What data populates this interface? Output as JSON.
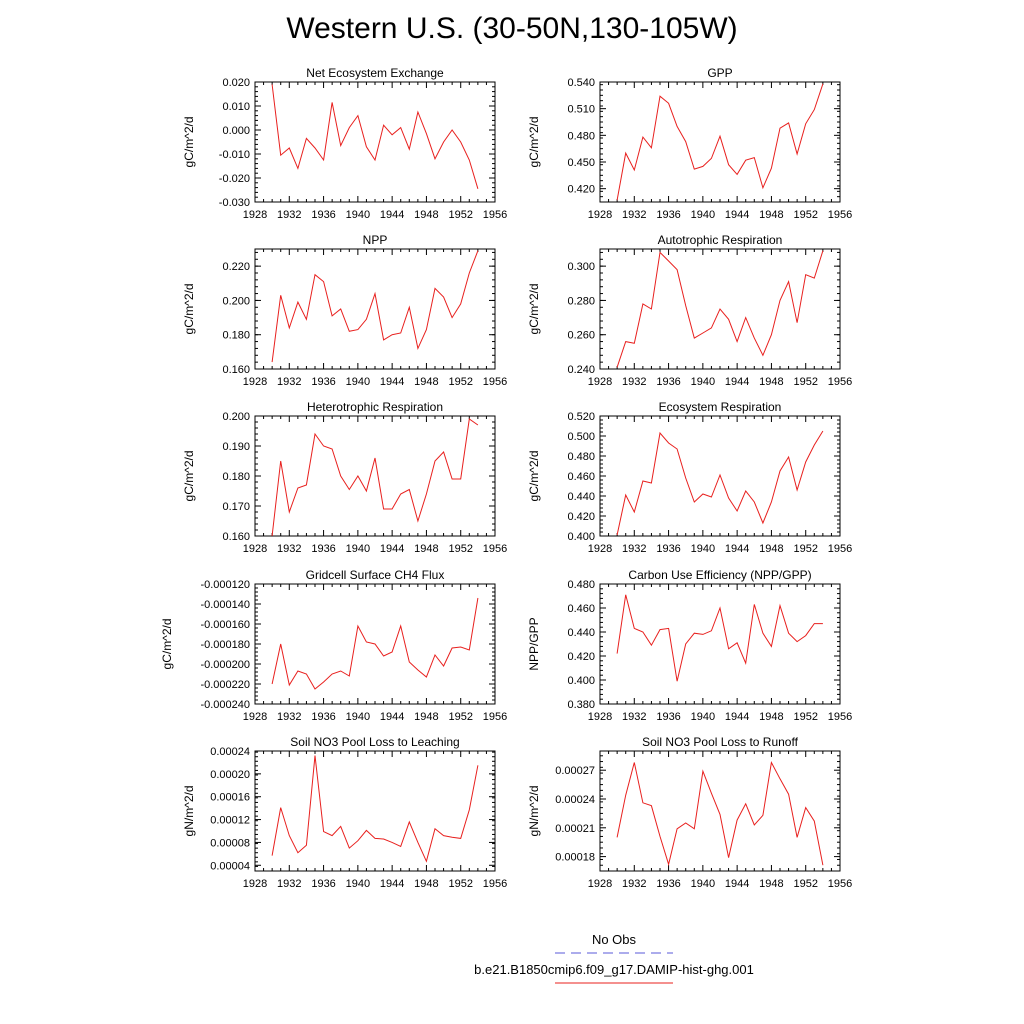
{
  "title": "Western U.S. (30-50N,130-105W)",
  "colors": {
    "model": "#e8201e",
    "obs": "#5a5ad8",
    "axis": "#000000"
  },
  "legend": {
    "obs_label": "No Obs",
    "model_label": "b.e21.B1850cmip6.f09_g17.DAMIP-hist-ghg.001"
  },
  "chart_data": [
    {
      "type": "line",
      "title": "Net Ecosystem Exchange",
      "ylabel": "gC/m^2/d",
      "xlim": [
        1928,
        1956
      ],
      "ylim": [
        -0.03,
        0.02
      ],
      "xticks": [
        "1928",
        "1932",
        "1936",
        "1940",
        "1944",
        "1948",
        "1952",
        "1956"
      ],
      "yticks": [
        "0.020",
        "0.010",
        "0.000",
        "-0.010",
        "-0.020",
        "-0.030"
      ],
      "ytick_values": [
        0.02,
        0.01,
        0.0,
        -0.01,
        -0.02,
        -0.03
      ],
      "x": [
        1930,
        1931,
        1932,
        1933,
        1934,
        1935,
        1936,
        1937,
        1938,
        1939,
        1940,
        1941,
        1942,
        1943,
        1944,
        1945,
        1946,
        1947,
        1948,
        1949,
        1950,
        1951,
        1952,
        1953,
        1954
      ],
      "series": [
        {
          "name": "b.e21.B1850cmip6.f09_g17.DAMIP-hist-ghg.001",
          "values": [
            0.019,
            -0.0105,
            -0.0075,
            -0.016,
            -0.0035,
            -0.0075,
            -0.0125,
            0.0115,
            -0.0065,
            0.001,
            0.006,
            -0.007,
            -0.0125,
            0.002,
            -0.002,
            0.001,
            -0.008,
            0.0075,
            -0.0015,
            -0.012,
            -0.005,
            0.0,
            -0.005,
            -0.0125,
            -0.0245
          ]
        }
      ]
    },
    {
      "type": "line",
      "title": "GPP",
      "ylabel": "gC/m^2/d",
      "xlim": [
        1928,
        1956
      ],
      "ylim": [
        0.405,
        0.54
      ],
      "xticks": [
        "1928",
        "1932",
        "1936",
        "1940",
        "1944",
        "1948",
        "1952",
        "1956"
      ],
      "yticks": [
        "0.540",
        "0.510",
        "0.480",
        "0.450",
        "0.420"
      ],
      "ytick_values": [
        0.54,
        0.51,
        0.48,
        0.45,
        0.42
      ],
      "x": [
        1930,
        1931,
        1932,
        1933,
        1934,
        1935,
        1936,
        1937,
        1938,
        1939,
        1940,
        1941,
        1942,
        1943,
        1944,
        1945,
        1946,
        1947,
        1948,
        1949,
        1950,
        1951,
        1952,
        1953,
        1954
      ],
      "series": [
        {
          "name": "b.e21.B1850cmip6.f09_g17.DAMIP-hist-ghg.001",
          "values": [
            0.407,
            0.46,
            0.441,
            0.478,
            0.466,
            0.524,
            0.516,
            0.49,
            0.473,
            0.442,
            0.445,
            0.454,
            0.479,
            0.447,
            0.436,
            0.452,
            0.455,
            0.421,
            0.443,
            0.488,
            0.494,
            0.459,
            0.493,
            0.509,
            0.538
          ]
        }
      ]
    },
    {
      "type": "line",
      "title": "NPP",
      "ylabel": "gC/m^2/d",
      "xlim": [
        1928,
        1956
      ],
      "ylim": [
        0.16,
        0.23
      ],
      "xticks": [
        "1928",
        "1932",
        "1936",
        "1940",
        "1944",
        "1948",
        "1952",
        "1956"
      ],
      "yticks": [
        "0.220",
        "0.200",
        "0.180",
        "0.160"
      ],
      "ytick_values": [
        0.22,
        0.2,
        0.18,
        0.16
      ],
      "x": [
        1930,
        1931,
        1932,
        1933,
        1934,
        1935,
        1936,
        1937,
        1938,
        1939,
        1940,
        1941,
        1942,
        1943,
        1944,
        1945,
        1946,
        1947,
        1948,
        1949,
        1950,
        1951,
        1952,
        1953,
        1954
      ],
      "series": [
        {
          "name": "b.e21.B1850cmip6.f09_g17.DAMIP-hist-ghg.001",
          "values": [
            0.164,
            0.203,
            0.184,
            0.199,
            0.189,
            0.215,
            0.211,
            0.191,
            0.195,
            0.182,
            0.183,
            0.189,
            0.204,
            0.177,
            0.18,
            0.181,
            0.196,
            0.172,
            0.183,
            0.207,
            0.202,
            0.19,
            0.198,
            0.216,
            0.229
          ]
        }
      ]
    },
    {
      "type": "line",
      "title": "Autotrophic Respiration",
      "ylabel": "gC/m^2/d",
      "xlim": [
        1928,
        1956
      ],
      "ylim": [
        0.24,
        0.31
      ],
      "xticks": [
        "1928",
        "1932",
        "1936",
        "1940",
        "1944",
        "1948",
        "1952",
        "1956"
      ],
      "yticks": [
        "0.300",
        "0.280",
        "0.260",
        "0.240"
      ],
      "ytick_values": [
        0.3,
        0.28,
        0.26,
        0.24
      ],
      "x": [
        1930,
        1931,
        1932,
        1933,
        1934,
        1935,
        1936,
        1937,
        1938,
        1939,
        1940,
        1941,
        1942,
        1943,
        1944,
        1945,
        1946,
        1947,
        1948,
        1949,
        1950,
        1951,
        1952,
        1953,
        1954
      ],
      "series": [
        {
          "name": "b.e21.B1850cmip6.f09_g17.DAMIP-hist-ghg.001",
          "values": [
            0.241,
            0.256,
            0.255,
            0.278,
            0.275,
            0.308,
            0.303,
            0.298,
            0.277,
            0.258,
            0.261,
            0.264,
            0.275,
            0.269,
            0.256,
            0.27,
            0.258,
            0.248,
            0.26,
            0.28,
            0.291,
            0.267,
            0.295,
            0.293,
            0.309
          ]
        }
      ]
    },
    {
      "type": "line",
      "title": "Heterotrophic Respiration",
      "ylabel": "gC/m^2/d",
      "xlim": [
        1928,
        1956
      ],
      "ylim": [
        0.16,
        0.2
      ],
      "xticks": [
        "1928",
        "1932",
        "1936",
        "1940",
        "1944",
        "1948",
        "1952",
        "1956"
      ],
      "yticks": [
        "0.200",
        "0.190",
        "0.180",
        "0.170",
        "0.160"
      ],
      "ytick_values": [
        0.2,
        0.19,
        0.18,
        0.17,
        0.16
      ],
      "x": [
        1930,
        1931,
        1932,
        1933,
        1934,
        1935,
        1936,
        1937,
        1938,
        1939,
        1940,
        1941,
        1942,
        1943,
        1944,
        1945,
        1946,
        1947,
        1948,
        1949,
        1950,
        1951,
        1952,
        1953,
        1954
      ],
      "series": [
        {
          "name": "b.e21.B1850cmip6.f09_g17.DAMIP-hist-ghg.001",
          "values": [
            0.16,
            0.185,
            0.168,
            0.176,
            0.177,
            0.194,
            0.19,
            0.189,
            0.18,
            0.1755,
            0.18,
            0.175,
            0.186,
            0.169,
            0.169,
            0.174,
            0.1755,
            0.165,
            0.174,
            0.185,
            0.188,
            0.179,
            0.179,
            0.199,
            0.197
          ]
        }
      ]
    },
    {
      "type": "line",
      "title": "Ecosystem Respiration",
      "ylabel": "gC/m^2/d",
      "xlim": [
        1928,
        1956
      ],
      "ylim": [
        0.4,
        0.52
      ],
      "xticks": [
        "1928",
        "1932",
        "1936",
        "1940",
        "1944",
        "1948",
        "1952",
        "1956"
      ],
      "yticks": [
        "0.520",
        "0.500",
        "0.480",
        "0.460",
        "0.440",
        "0.420",
        "0.400"
      ],
      "ytick_values": [
        0.52,
        0.5,
        0.48,
        0.46,
        0.44,
        0.42,
        0.4
      ],
      "x": [
        1930,
        1931,
        1932,
        1933,
        1934,
        1935,
        1936,
        1937,
        1938,
        1939,
        1940,
        1941,
        1942,
        1943,
        1944,
        1945,
        1946,
        1947,
        1948,
        1949,
        1950,
        1951,
        1952,
        1953,
        1954
      ],
      "series": [
        {
          "name": "b.e21.B1850cmip6.f09_g17.DAMIP-hist-ghg.001",
          "values": [
            0.401,
            0.441,
            0.424,
            0.455,
            0.453,
            0.503,
            0.493,
            0.487,
            0.458,
            0.434,
            0.442,
            0.439,
            0.461,
            0.438,
            0.425,
            0.445,
            0.434,
            0.413,
            0.434,
            0.465,
            0.479,
            0.446,
            0.474,
            0.491,
            0.505
          ]
        }
      ]
    },
    {
      "type": "line",
      "title": "Gridcell Surface CH4 Flux",
      "ylabel": "gC/m^2/d",
      "xlim": [
        1928,
        1956
      ],
      "ylim": [
        -0.00024,
        -0.00012
      ],
      "xticks": [
        "1928",
        "1932",
        "1936",
        "1940",
        "1944",
        "1948",
        "1952",
        "1956"
      ],
      "yticks": [
        "-0.000120",
        "-0.000140",
        "-0.000160",
        "-0.000180",
        "-0.000200",
        "-0.000220",
        "-0.000240"
      ],
      "ytick_values": [
        -0.00012,
        -0.00014,
        -0.00016,
        -0.00018,
        -0.0002,
        -0.00022,
        -0.00024
      ],
      "x": [
        1930,
        1931,
        1932,
        1933,
        1934,
        1935,
        1936,
        1937,
        1938,
        1939,
        1940,
        1941,
        1942,
        1943,
        1944,
        1945,
        1946,
        1947,
        1948,
        1949,
        1950,
        1951,
        1952,
        1953,
        1954
      ],
      "series": [
        {
          "name": "b.e21.B1850cmip6.f09_g17.DAMIP-hist-ghg.001",
          "values": [
            -0.00022,
            -0.00018,
            -0.000221,
            -0.000207,
            -0.00021,
            -0.000225,
            -0.000218,
            -0.00021,
            -0.000207,
            -0.000212,
            -0.000162,
            -0.000178,
            -0.00018,
            -0.000192,
            -0.000188,
            -0.000162,
            -0.000198,
            -0.000206,
            -0.000213,
            -0.000191,
            -0.000202,
            -0.000184,
            -0.000183,
            -0.000186,
            -0.000134
          ]
        }
      ]
    },
    {
      "type": "line",
      "title": "Carbon Use Efficiency (NPP/GPP)",
      "ylabel": "NPP/GPP",
      "xlim": [
        1928,
        1956
      ],
      "ylim": [
        0.38,
        0.48
      ],
      "xticks": [
        "1928",
        "1932",
        "1936",
        "1940",
        "1944",
        "1948",
        "1952",
        "1956"
      ],
      "yticks": [
        "0.480",
        "0.460",
        "0.440",
        "0.420",
        "0.400",
        "0.380"
      ],
      "ytick_values": [
        0.48,
        0.46,
        0.44,
        0.42,
        0.4,
        0.38
      ],
      "x": [
        1930,
        1931,
        1932,
        1933,
        1934,
        1935,
        1936,
        1937,
        1938,
        1939,
        1940,
        1941,
        1942,
        1943,
        1944,
        1945,
        1946,
        1947,
        1948,
        1949,
        1950,
        1951,
        1952,
        1953,
        1954
      ],
      "series": [
        {
          "name": "b.e21.B1850cmip6.f09_g17.DAMIP-hist-ghg.001",
          "values": [
            0.422,
            0.471,
            0.443,
            0.44,
            0.429,
            0.442,
            0.443,
            0.399,
            0.43,
            0.439,
            0.438,
            0.441,
            0.46,
            0.426,
            0.431,
            0.414,
            0.463,
            0.439,
            0.428,
            0.462,
            0.439,
            0.432,
            0.437,
            0.447,
            0.447
          ]
        }
      ]
    },
    {
      "type": "line",
      "title": "Soil NO3 Pool Loss to Leaching",
      "ylabel": "gN/m^2/d",
      "xlim": [
        1928,
        1956
      ],
      "ylim": [
        3e-05,
        0.00024
      ],
      "xticks": [
        "1928",
        "1932",
        "1936",
        "1940",
        "1944",
        "1948",
        "1952",
        "1956"
      ],
      "yticks": [
        "0.00024",
        "0.00020",
        "0.00016",
        "0.00012",
        "0.00008",
        "0.00004"
      ],
      "ytick_values": [
        0.00024,
        0.0002,
        0.00016,
        0.00012,
        8e-05,
        4e-05
      ],
      "x": [
        1930,
        1931,
        1932,
        1933,
        1934,
        1935,
        1936,
        1937,
        1938,
        1939,
        1940,
        1941,
        1942,
        1943,
        1944,
        1945,
        1946,
        1947,
        1948,
        1949,
        1950,
        1951,
        1952,
        1953,
        1954
      ],
      "series": [
        {
          "name": "b.e21.B1850cmip6.f09_g17.DAMIP-hist-ghg.001",
          "values": [
            5.7e-05,
            0.000141,
            9.2e-05,
            6.2e-05,
            7.5e-05,
            0.000232,
            9.9e-05,
            9.2e-05,
            0.000108,
            7e-05,
            8.3e-05,
            0.000101,
            8.7e-05,
            8.6e-05,
            8e-05,
            7.3e-05,
            0.000116,
            8e-05,
            4.7e-05,
            0.000104,
            9.2e-05,
            8.9e-05,
            8.7e-05,
            0.000137,
            0.000215
          ]
        }
      ]
    },
    {
      "type": "line",
      "title": "Soil NO3 Pool Loss to Runoff",
      "ylabel": "gN/m^2/d",
      "xlim": [
        1928,
        1956
      ],
      "ylim": [
        0.000165,
        0.00029
      ],
      "xticks": [
        "1928",
        "1932",
        "1936",
        "1940",
        "1944",
        "1948",
        "1952",
        "1956"
      ],
      "yticks": [
        "0.00027",
        "0.00024",
        "0.00021",
        "0.00018"
      ],
      "ytick_values": [
        0.00027,
        0.00024,
        0.00021,
        0.00018
      ],
      "x": [
        1930,
        1931,
        1932,
        1933,
        1934,
        1935,
        1936,
        1937,
        1938,
        1939,
        1940,
        1941,
        1942,
        1943,
        1944,
        1945,
        1946,
        1947,
        1948,
        1949,
        1950,
        1951,
        1952,
        1953,
        1954
      ],
      "series": [
        {
          "name": "b.e21.B1850cmip6.f09_g17.DAMIP-hist-ghg.001",
          "values": [
            0.0002,
            0.000244,
            0.000278,
            0.000236,
            0.000233,
            0.000201,
            0.000172,
            0.000209,
            0.000215,
            0.000209,
            0.000269,
            0.000246,
            0.000224,
            0.000179,
            0.000218,
            0.000235,
            0.000213,
            0.000223,
            0.000278,
            0.000261,
            0.000245,
            0.0002,
            0.000231,
            0.000217,
            0.000171
          ]
        }
      ]
    }
  ]
}
